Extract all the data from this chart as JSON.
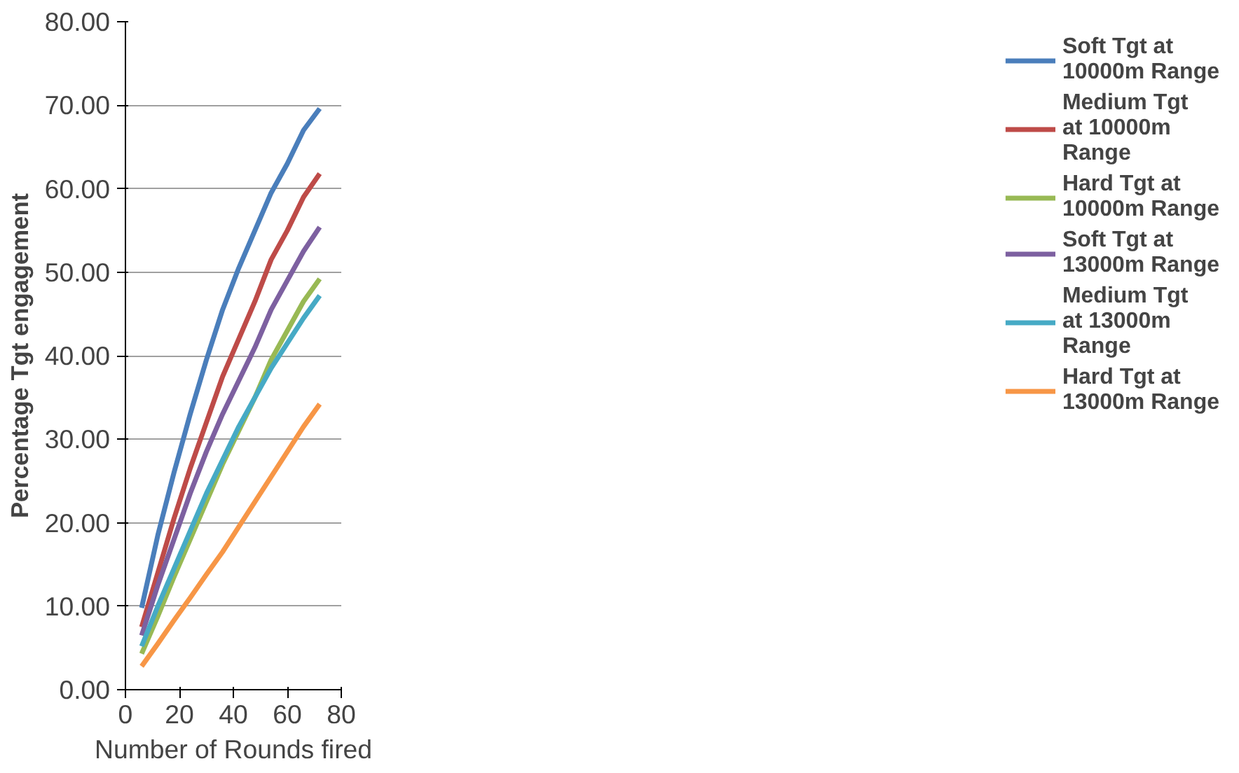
{
  "chart_data": {
    "type": "line",
    "xlabel": "Number of Rounds fired",
    "ylabel": "Percentage Tgt engagement",
    "x": [
      6,
      12,
      18,
      24,
      30,
      36,
      42,
      48,
      54,
      60,
      66,
      72
    ],
    "xlim": [
      0,
      80
    ],
    "xticks": [
      0,
      20,
      40,
      60,
      80
    ],
    "ylim": [
      0,
      80
    ],
    "yticks": [
      {
        "value": 0,
        "label": "0.00"
      },
      {
        "value": 10,
        "label": "10.00"
      },
      {
        "value": 20,
        "label": "20.00"
      },
      {
        "value": 30,
        "label": "30.00"
      },
      {
        "value": 40,
        "label": "40.00"
      },
      {
        "value": 50,
        "label": "50.00"
      },
      {
        "value": 60,
        "label": "60.00"
      },
      {
        "value": 70,
        "label": "70.00"
      },
      {
        "value": 80,
        "label": "80.00"
      }
    ],
    "grid": "y",
    "legend": "right",
    "marker": "none",
    "line_style": "solid",
    "series": [
      {
        "name": "Soft Tgt at 10000m Range",
        "color": "#4a7ebb",
        "values": [
          9.8,
          18.5,
          26,
          33,
          39.5,
          45.5,
          50.5,
          55,
          59.5,
          63,
          67,
          69.6
        ]
      },
      {
        "name": "Medium Tgt at 10000m Range",
        "color": "#be4b48",
        "values": [
          7.5,
          14,
          20.5,
          26.5,
          32,
          37.5,
          42,
          46.5,
          51.5,
          55,
          59,
          61.8
        ]
      },
      {
        "name": "Hard Tgt at 10000m Range",
        "color": "#98b954",
        "values": [
          4.3,
          8.8,
          13.5,
          18,
          22.5,
          27,
          31,
          35,
          39.5,
          43,
          46.5,
          49.2
        ]
      },
      {
        "name": "Soft Tgt at 13000m Range",
        "color": "#7d60a0",
        "values": [
          6.5,
          12.5,
          18,
          23.5,
          28.5,
          33,
          37,
          41,
          45.5,
          49,
          52.5,
          55.4
        ]
      },
      {
        "name": "Medium Tgt at 13000m Range",
        "color": "#46aac5",
        "values": [
          5.2,
          10,
          14.5,
          19,
          23.5,
          27.5,
          31.5,
          35,
          38.5,
          41.5,
          44.5,
          47.2
        ]
      },
      {
        "name": "Hard Tgt at 13000m Range",
        "color": "#f79646",
        "values": [
          2.8,
          5.5,
          8.3,
          11,
          13.8,
          16.5,
          19.5,
          22.5,
          25.5,
          28.5,
          31.5,
          34.2
        ]
      }
    ]
  }
}
